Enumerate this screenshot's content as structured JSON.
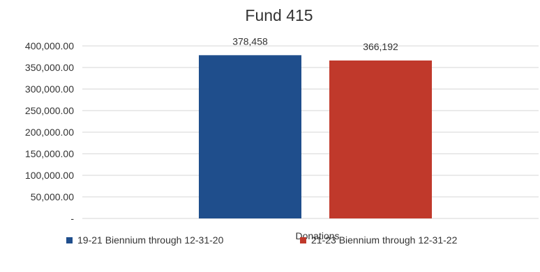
{
  "chart_data": {
    "type": "bar",
    "title": "Fund 415",
    "categories": [
      "Donations"
    ],
    "series": [
      {
        "name": "19-21 Biennium through 12-31-20",
        "values": [
          378458
        ],
        "value_label": "378,458",
        "color": "#1f4e8c"
      },
      {
        "name": "21-23 Biennium through 12-31-22",
        "values": [
          366192
        ],
        "value_label": "366,192",
        "color": "#c0392b"
      }
    ],
    "ylim": [
      0,
      400000
    ],
    "yticks": [
      0,
      50000,
      100000,
      150000,
      200000,
      250000,
      300000,
      350000,
      400000
    ],
    "ytick_labels": [
      "-",
      "50,000.00",
      "100,000.00",
      "150,000.00",
      "200,000.00",
      "250,000.00",
      "300,000.00",
      "350,000.00",
      "400,000.00"
    ],
    "xlabel": "",
    "ylabel": "",
    "grid": true,
    "legend_position": "bottom"
  }
}
